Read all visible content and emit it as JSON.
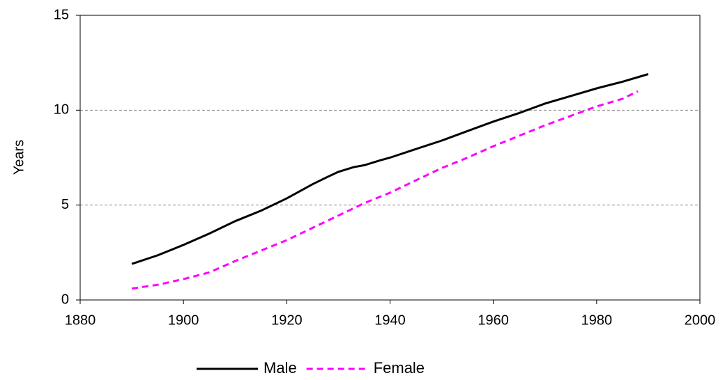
{
  "chart_data": {
    "type": "line",
    "ylabel": "Years",
    "xlim": [
      1880,
      2000
    ],
    "xticks": [
      1880,
      1900,
      1920,
      1940,
      1960,
      1980,
      2000
    ],
    "ylim": [
      0,
      15
    ],
    "yticks": [
      0,
      5,
      10,
      15
    ],
    "grid": true,
    "legend": "bottom",
    "series": [
      {
        "name": "Male",
        "color": "#000000",
        "dash": false,
        "x": [
          1890,
          1895,
          1900,
          1905,
          1910,
          1915,
          1920,
          1925,
          1928,
          1930,
          1933,
          1935,
          1938,
          1940,
          1945,
          1950,
          1955,
          1960,
          1965,
          1970,
          1975,
          1980,
          1985,
          1990
        ],
        "values": [
          1.9,
          2.35,
          2.9,
          3.5,
          4.15,
          4.7,
          5.35,
          6.1,
          6.5,
          6.75,
          7.0,
          7.1,
          7.35,
          7.5,
          7.95,
          8.4,
          8.9,
          9.4,
          9.85,
          10.35,
          10.75,
          11.15,
          11.5,
          11.9
        ]
      },
      {
        "name": "Female",
        "color": "#ff00ff",
        "dash": true,
        "x": [
          1890,
          1895,
          1900,
          1905,
          1910,
          1915,
          1920,
          1925,
          1930,
          1935,
          1940,
          1945,
          1950,
          1955,
          1960,
          1965,
          1970,
          1975,
          1980,
          1985,
          1988
        ],
        "values": [
          0.6,
          0.8,
          1.1,
          1.45,
          2.05,
          2.6,
          3.15,
          3.8,
          4.45,
          5.1,
          5.65,
          6.3,
          6.95,
          7.5,
          8.1,
          8.65,
          9.2,
          9.7,
          10.2,
          10.6,
          11.0
        ]
      }
    ]
  }
}
